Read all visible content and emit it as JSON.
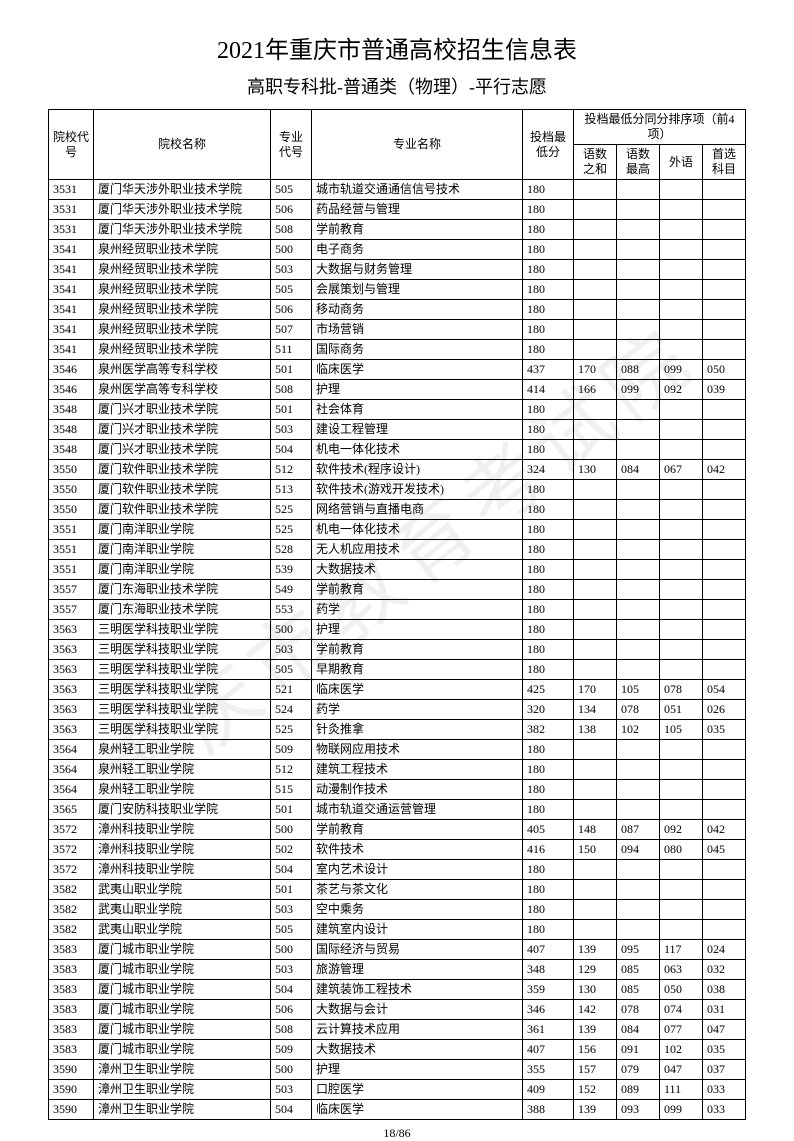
{
  "title": "2021年重庆市普通高校招生信息表",
  "subtitle": "高职专科批-普通类（物理）-平行志愿",
  "watermark": "重庆市教育考试院",
  "pageNum": "18/86",
  "headers": {
    "schoolCode": "院校代号",
    "schoolName": "院校名称",
    "majorCode": "专业代号",
    "majorName": "专业名称",
    "minScore": "投档最低分",
    "tiebreakGroup": "投档最低分同分排序项（前4项）",
    "t1": "语数之和",
    "t2": "语数最高",
    "t3": "外语",
    "t4": "首选科目"
  },
  "rows": [
    {
      "sc": "3531",
      "sn": "厦门华天涉外职业技术学院",
      "mc": "505",
      "mn": "城市轨道交通通信信号技术",
      "ms": "180",
      "a": "",
      "b": "",
      "c": "",
      "d": ""
    },
    {
      "sc": "3531",
      "sn": "厦门华天涉外职业技术学院",
      "mc": "506",
      "mn": "药品经营与管理",
      "ms": "180",
      "a": "",
      "b": "",
      "c": "",
      "d": ""
    },
    {
      "sc": "3531",
      "sn": "厦门华天涉外职业技术学院",
      "mc": "508",
      "mn": "学前教育",
      "ms": "180",
      "a": "",
      "b": "",
      "c": "",
      "d": ""
    },
    {
      "sc": "3541",
      "sn": "泉州经贸职业技术学院",
      "mc": "500",
      "mn": "电子商务",
      "ms": "180",
      "a": "",
      "b": "",
      "c": "",
      "d": ""
    },
    {
      "sc": "3541",
      "sn": "泉州经贸职业技术学院",
      "mc": "503",
      "mn": "大数据与财务管理",
      "ms": "180",
      "a": "",
      "b": "",
      "c": "",
      "d": ""
    },
    {
      "sc": "3541",
      "sn": "泉州经贸职业技术学院",
      "mc": "505",
      "mn": "会展策划与管理",
      "ms": "180",
      "a": "",
      "b": "",
      "c": "",
      "d": ""
    },
    {
      "sc": "3541",
      "sn": "泉州经贸职业技术学院",
      "mc": "506",
      "mn": "移动商务",
      "ms": "180",
      "a": "",
      "b": "",
      "c": "",
      "d": ""
    },
    {
      "sc": "3541",
      "sn": "泉州经贸职业技术学院",
      "mc": "507",
      "mn": "市场营销",
      "ms": "180",
      "a": "",
      "b": "",
      "c": "",
      "d": ""
    },
    {
      "sc": "3541",
      "sn": "泉州经贸职业技术学院",
      "mc": "511",
      "mn": "国际商务",
      "ms": "180",
      "a": "",
      "b": "",
      "c": "",
      "d": ""
    },
    {
      "sc": "3546",
      "sn": "泉州医学高等专科学校",
      "mc": "501",
      "mn": "临床医学",
      "ms": "437",
      "a": "170",
      "b": "088",
      "c": "099",
      "d": "050"
    },
    {
      "sc": "3546",
      "sn": "泉州医学高等专科学校",
      "mc": "508",
      "mn": "护理",
      "ms": "414",
      "a": "166",
      "b": "099",
      "c": "092",
      "d": "039"
    },
    {
      "sc": "3548",
      "sn": "厦门兴才职业技术学院",
      "mc": "501",
      "mn": "社会体育",
      "ms": "180",
      "a": "",
      "b": "",
      "c": "",
      "d": ""
    },
    {
      "sc": "3548",
      "sn": "厦门兴才职业技术学院",
      "mc": "503",
      "mn": "建设工程管理",
      "ms": "180",
      "a": "",
      "b": "",
      "c": "",
      "d": ""
    },
    {
      "sc": "3548",
      "sn": "厦门兴才职业技术学院",
      "mc": "504",
      "mn": "机电一体化技术",
      "ms": "180",
      "a": "",
      "b": "",
      "c": "",
      "d": ""
    },
    {
      "sc": "3550",
      "sn": "厦门软件职业技术学院",
      "mc": "512",
      "mn": "软件技术(程序设计)",
      "ms": "324",
      "a": "130",
      "b": "084",
      "c": "067",
      "d": "042"
    },
    {
      "sc": "3550",
      "sn": "厦门软件职业技术学院",
      "mc": "513",
      "mn": "软件技术(游戏开发技术)",
      "ms": "180",
      "a": "",
      "b": "",
      "c": "",
      "d": ""
    },
    {
      "sc": "3550",
      "sn": "厦门软件职业技术学院",
      "mc": "525",
      "mn": "网络营销与直播电商",
      "ms": "180",
      "a": "",
      "b": "",
      "c": "",
      "d": ""
    },
    {
      "sc": "3551",
      "sn": "厦门南洋职业学院",
      "mc": "525",
      "mn": "机电一体化技术",
      "ms": "180",
      "a": "",
      "b": "",
      "c": "",
      "d": ""
    },
    {
      "sc": "3551",
      "sn": "厦门南洋职业学院",
      "mc": "528",
      "mn": "无人机应用技术",
      "ms": "180",
      "a": "",
      "b": "",
      "c": "",
      "d": ""
    },
    {
      "sc": "3551",
      "sn": "厦门南洋职业学院",
      "mc": "539",
      "mn": "大数据技术",
      "ms": "180",
      "a": "",
      "b": "",
      "c": "",
      "d": ""
    },
    {
      "sc": "3557",
      "sn": "厦门东海职业技术学院",
      "mc": "549",
      "mn": "学前教育",
      "ms": "180",
      "a": "",
      "b": "",
      "c": "",
      "d": ""
    },
    {
      "sc": "3557",
      "sn": "厦门东海职业技术学院",
      "mc": "553",
      "mn": "药学",
      "ms": "180",
      "a": "",
      "b": "",
      "c": "",
      "d": ""
    },
    {
      "sc": "3563",
      "sn": "三明医学科技职业学院",
      "mc": "500",
      "mn": "护理",
      "ms": "180",
      "a": "",
      "b": "",
      "c": "",
      "d": ""
    },
    {
      "sc": "3563",
      "sn": "三明医学科技职业学院",
      "mc": "503",
      "mn": "学前教育",
      "ms": "180",
      "a": "",
      "b": "",
      "c": "",
      "d": ""
    },
    {
      "sc": "3563",
      "sn": "三明医学科技职业学院",
      "mc": "505",
      "mn": "早期教育",
      "ms": "180",
      "a": "",
      "b": "",
      "c": "",
      "d": ""
    },
    {
      "sc": "3563",
      "sn": "三明医学科技职业学院",
      "mc": "521",
      "mn": "临床医学",
      "ms": "425",
      "a": "170",
      "b": "105",
      "c": "078",
      "d": "054"
    },
    {
      "sc": "3563",
      "sn": "三明医学科技职业学院",
      "mc": "524",
      "mn": "药学",
      "ms": "320",
      "a": "134",
      "b": "078",
      "c": "051",
      "d": "026"
    },
    {
      "sc": "3563",
      "sn": "三明医学科技职业学院",
      "mc": "525",
      "mn": "针灸推拿",
      "ms": "382",
      "a": "138",
      "b": "102",
      "c": "105",
      "d": "035"
    },
    {
      "sc": "3564",
      "sn": "泉州轻工职业学院",
      "mc": "509",
      "mn": "物联网应用技术",
      "ms": "180",
      "a": "",
      "b": "",
      "c": "",
      "d": ""
    },
    {
      "sc": "3564",
      "sn": "泉州轻工职业学院",
      "mc": "512",
      "mn": "建筑工程技术",
      "ms": "180",
      "a": "",
      "b": "",
      "c": "",
      "d": ""
    },
    {
      "sc": "3564",
      "sn": "泉州轻工职业学院",
      "mc": "515",
      "mn": "动漫制作技术",
      "ms": "180",
      "a": "",
      "b": "",
      "c": "",
      "d": ""
    },
    {
      "sc": "3565",
      "sn": "厦门安防科技职业学院",
      "mc": "501",
      "mn": "城市轨道交通运营管理",
      "ms": "180",
      "a": "",
      "b": "",
      "c": "",
      "d": ""
    },
    {
      "sc": "3572",
      "sn": "漳州科技职业学院",
      "mc": "500",
      "mn": "学前教育",
      "ms": "405",
      "a": "148",
      "b": "087",
      "c": "092",
      "d": "042"
    },
    {
      "sc": "3572",
      "sn": "漳州科技职业学院",
      "mc": "502",
      "mn": "软件技术",
      "ms": "416",
      "a": "150",
      "b": "094",
      "c": "080",
      "d": "045"
    },
    {
      "sc": "3572",
      "sn": "漳州科技职业学院",
      "mc": "504",
      "mn": "室内艺术设计",
      "ms": "180",
      "a": "",
      "b": "",
      "c": "",
      "d": ""
    },
    {
      "sc": "3582",
      "sn": "武夷山职业学院",
      "mc": "501",
      "mn": "茶艺与茶文化",
      "ms": "180",
      "a": "",
      "b": "",
      "c": "",
      "d": ""
    },
    {
      "sc": "3582",
      "sn": "武夷山职业学院",
      "mc": "503",
      "mn": "空中乘务",
      "ms": "180",
      "a": "",
      "b": "",
      "c": "",
      "d": ""
    },
    {
      "sc": "3582",
      "sn": "武夷山职业学院",
      "mc": "505",
      "mn": "建筑室内设计",
      "ms": "180",
      "a": "",
      "b": "",
      "c": "",
      "d": ""
    },
    {
      "sc": "3583",
      "sn": "厦门城市职业学院",
      "mc": "500",
      "mn": "国际经济与贸易",
      "ms": "407",
      "a": "139",
      "b": "095",
      "c": "117",
      "d": "024"
    },
    {
      "sc": "3583",
      "sn": "厦门城市职业学院",
      "mc": "503",
      "mn": "旅游管理",
      "ms": "348",
      "a": "129",
      "b": "085",
      "c": "063",
      "d": "032"
    },
    {
      "sc": "3583",
      "sn": "厦门城市职业学院",
      "mc": "504",
      "mn": "建筑装饰工程技术",
      "ms": "359",
      "a": "130",
      "b": "085",
      "c": "050",
      "d": "038"
    },
    {
      "sc": "3583",
      "sn": "厦门城市职业学院",
      "mc": "506",
      "mn": "大数据与会计",
      "ms": "346",
      "a": "142",
      "b": "078",
      "c": "074",
      "d": "031"
    },
    {
      "sc": "3583",
      "sn": "厦门城市职业学院",
      "mc": "508",
      "mn": "云计算技术应用",
      "ms": "361",
      "a": "139",
      "b": "084",
      "c": "077",
      "d": "047"
    },
    {
      "sc": "3583",
      "sn": "厦门城市职业学院",
      "mc": "509",
      "mn": "大数据技术",
      "ms": "407",
      "a": "156",
      "b": "091",
      "c": "102",
      "d": "035"
    },
    {
      "sc": "3590",
      "sn": "漳州卫生职业学院",
      "mc": "500",
      "mn": "护理",
      "ms": "355",
      "a": "157",
      "b": "079",
      "c": "047",
      "d": "037"
    },
    {
      "sc": "3590",
      "sn": "漳州卫生职业学院",
      "mc": "503",
      "mn": "口腔医学",
      "ms": "409",
      "a": "152",
      "b": "089",
      "c": "111",
      "d": "033"
    },
    {
      "sc": "3590",
      "sn": "漳州卫生职业学院",
      "mc": "504",
      "mn": "临床医学",
      "ms": "388",
      "a": "139",
      "b": "093",
      "c": "099",
      "d": "033"
    }
  ]
}
